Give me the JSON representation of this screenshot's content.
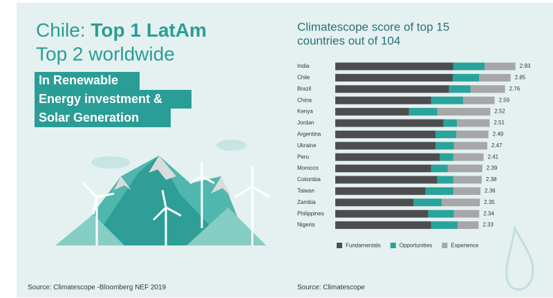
{
  "left": {
    "headline_prefix": "Chile:",
    "headline_bold": "Top 1 LatAm",
    "headline_line2": "Top 2 worldwide",
    "highlight": [
      "In Renewable",
      "Energy investment &",
      "Solar Generation"
    ],
    "source": "Source: Climatescope -Bloomberg NEF 2019"
  },
  "chart_data": {
    "type": "stacked-bar-horizontal",
    "title": [
      "Climatescope score of top 15",
      "countries out of 104"
    ],
    "categories": [
      "India",
      "Chile",
      "Brazil",
      "China",
      "Kenya",
      "Jordan",
      "Argentina",
      "Ukraine",
      "Peru",
      "Morocco",
      "Colombia",
      "Taiwan",
      "Zambia",
      "Philippines",
      "Nigeria"
    ],
    "series": [
      {
        "name": "Fundamentals",
        "color": "#4d4d4f",
        "values": [
          1.92,
          1.91,
          1.85,
          1.56,
          1.2,
          1.76,
          1.63,
          1.63,
          1.7,
          1.56,
          1.66,
          1.47,
          1.27,
          1.51,
          1.56
        ]
      },
      {
        "name": "Opportunities",
        "color": "#2aa39b",
        "values": [
          0.51,
          0.43,
          0.35,
          0.52,
          0.46,
          0.22,
          0.34,
          0.3,
          0.22,
          0.27,
          0.26,
          0.45,
          0.46,
          0.42,
          0.43
        ]
      },
      {
        "name": "Experience",
        "color": "#a7a7a9",
        "values": [
          0.5,
          0.51,
          0.56,
          0.51,
          0.86,
          0.53,
          0.52,
          0.54,
          0.49,
          0.56,
          0.46,
          0.44,
          0.62,
          0.41,
          0.34
        ]
      }
    ],
    "totals": [
      2.93,
      2.85,
      2.76,
      2.59,
      2.52,
      2.51,
      2.49,
      2.47,
      2.41,
      2.39,
      2.38,
      2.36,
      2.35,
      2.34,
      2.33
    ],
    "source": "Source: Climatescope"
  }
}
